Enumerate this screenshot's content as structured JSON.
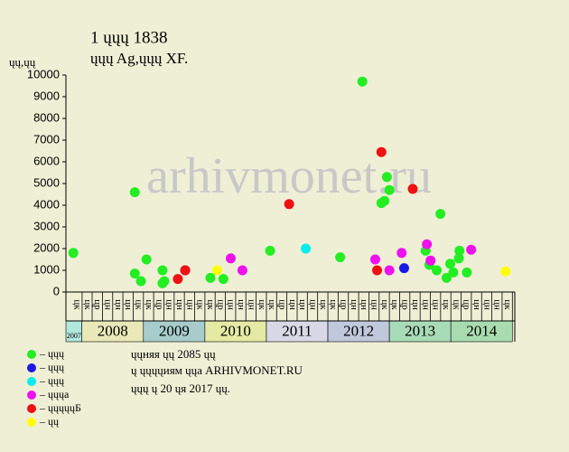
{
  "chart_data": {
    "type": "scatter",
    "title": "1 ųųų 1838",
    "subtitle": "ųųų Ag,ųųų XF.",
    "y_label": "ųų,ųų",
    "watermark": "arhivmonet.ru",
    "ylim": [
      0,
      10000
    ],
    "yticks": [
      0,
      1000,
      2000,
      3000,
      4000,
      5000,
      6000,
      7000,
      8000,
      9000,
      10000
    ],
    "xlim": [
      2007.74,
      2015.04
    ],
    "xticks": [
      {
        "value": 2007.92,
        "label": "цк"
      },
      {
        "value": 2008.083,
        "label": "цк"
      },
      {
        "value": 2008.25,
        "label": "цр"
      },
      {
        "value": 2008.417,
        "label": "цн"
      },
      {
        "value": 2008.583,
        "label": "цн"
      },
      {
        "value": 2008.75,
        "label": "цн"
      },
      {
        "value": 2008.917,
        "label": "цк"
      },
      {
        "value": 2009.083,
        "label": "цк"
      },
      {
        "value": 2009.25,
        "label": "цр"
      },
      {
        "value": 2009.417,
        "label": "цн"
      },
      {
        "value": 2009.583,
        "label": "цн"
      },
      {
        "value": 2009.75,
        "label": "цн"
      },
      {
        "value": 2009.917,
        "label": "цк"
      },
      {
        "value": 2010.083,
        "label": "цк"
      },
      {
        "value": 2010.25,
        "label": "цр"
      },
      {
        "value": 2010.417,
        "label": "цн"
      },
      {
        "value": 2010.583,
        "label": "цн"
      },
      {
        "value": 2010.75,
        "label": "цн"
      },
      {
        "value": 2010.917,
        "label": "цк"
      },
      {
        "value": 2011.083,
        "label": "цк"
      },
      {
        "value": 2011.25,
        "label": "цр"
      },
      {
        "value": 2011.417,
        "label": "цн"
      },
      {
        "value": 2011.583,
        "label": "цн"
      },
      {
        "value": 2011.75,
        "label": "цн"
      },
      {
        "value": 2011.917,
        "label": "цк"
      },
      {
        "value": 2012.083,
        "label": "цк"
      },
      {
        "value": 2012.25,
        "label": "цр"
      },
      {
        "value": 2012.417,
        "label": "цн"
      },
      {
        "value": 2012.583,
        "label": "цн"
      },
      {
        "value": 2012.75,
        "label": "цн"
      },
      {
        "value": 2012.917,
        "label": "цк"
      },
      {
        "value": 2013.083,
        "label": "цк"
      },
      {
        "value": 2013.25,
        "label": "цр"
      },
      {
        "value": 2013.417,
        "label": "цн"
      },
      {
        "value": 2013.583,
        "label": "цн"
      },
      {
        "value": 2013.75,
        "label": "цн"
      },
      {
        "value": 2013.917,
        "label": "цк"
      },
      {
        "value": 2014.083,
        "label": "цк"
      },
      {
        "value": 2014.25,
        "label": "цр"
      },
      {
        "value": 2014.417,
        "label": "цн"
      },
      {
        "value": 2014.583,
        "label": "цн"
      },
      {
        "value": 2014.75,
        "label": "цн"
      },
      {
        "value": 2014.917,
        "label": "цк"
      }
    ],
    "years": [
      {
        "label": "2007",
        "start": 2007.74,
        "end": 2008,
        "color": "#b0e8dc"
      },
      {
        "label": "2008",
        "start": 2008,
        "end": 2009,
        "color": "#e8e8b8"
      },
      {
        "label": "2009",
        "start": 2009,
        "end": 2010,
        "color": "#a8cccc"
      },
      {
        "label": "2010",
        "start": 2010,
        "end": 2011,
        "color": "#e4eaa4"
      },
      {
        "label": "2011",
        "start": 2011,
        "end": 2012,
        "color": "#d8d8e6"
      },
      {
        "label": "2012",
        "start": 2012,
        "end": 2013,
        "color": "#c0c8dc"
      },
      {
        "label": "2013",
        "start": 2013,
        "end": 2014,
        "color": "#a8dcb8"
      },
      {
        "label": "2014",
        "start": 2014,
        "end": 2015,
        "color": "#a8dcb0"
      }
    ],
    "series": [
      {
        "name": "– ųųų",
        "color": "#22ee22",
        "x": [
          2007.86,
          2008.86,
          2008.86,
          2008.96,
          2009.05,
          2009.31,
          2009.31,
          2009.34,
          2010.09,
          2010.3,
          2011.06,
          2012.2,
          2012.56,
          2012.87,
          2012.92,
          2012.96,
          2013.0,
          2013.59,
          2013.65,
          2013.77,
          2013.83,
          2013.93,
          2013.99,
          2014.04,
          2014.13,
          2014.14,
          2014.26
        ],
        "values": [
          1800,
          4600,
          850,
          500,
          1500,
          1000,
          400,
          500,
          650,
          600,
          1900,
          1600,
          9700,
          4100,
          4200,
          5300,
          4700,
          1900,
          1250,
          1000,
          3600,
          650,
          1300,
          900,
          1550,
          1900,
          900
        ]
      },
      {
        "name": "– ųųų",
        "color": "#1a1ae6",
        "x": [
          2009.68,
          2013.24
        ],
        "values": [
          1000,
          1100
        ]
      },
      {
        "name": "– ųųų",
        "color": "#00eeee",
        "x": [
          2011.64
        ],
        "values": [
          2000
        ]
      },
      {
        "name": "– ųųųа",
        "color": "#ee11ee",
        "x": [
          2010.42,
          2010.61,
          2012.77,
          2013.0,
          2013.2,
          2013.61,
          2013.67,
          2014.33
        ],
        "values": [
          1550,
          1000,
          1500,
          1000,
          1800,
          2200,
          1450,
          1950
        ]
      },
      {
        "name": "– ųųųųųБ",
        "color": "#ee1111",
        "x": [
          2009.56,
          2009.68,
          2011.37,
          2012.8,
          2012.87,
          2013.38
        ],
        "values": [
          600,
          1000,
          4050,
          1000,
          6450,
          4750
        ]
      },
      {
        "name": "– ųų",
        "color": "#ffff00",
        "x": [
          2010.2,
          2014.89
        ],
        "values": [
          1000,
          950
        ]
      }
    ],
    "notes": [
      "ųųняя ųų 2085 ųų",
      "ų ųųųųиям ųųа ARHIVMONET.RU",
      "ųųų ų 20 ųя 2017 ųų."
    ]
  }
}
